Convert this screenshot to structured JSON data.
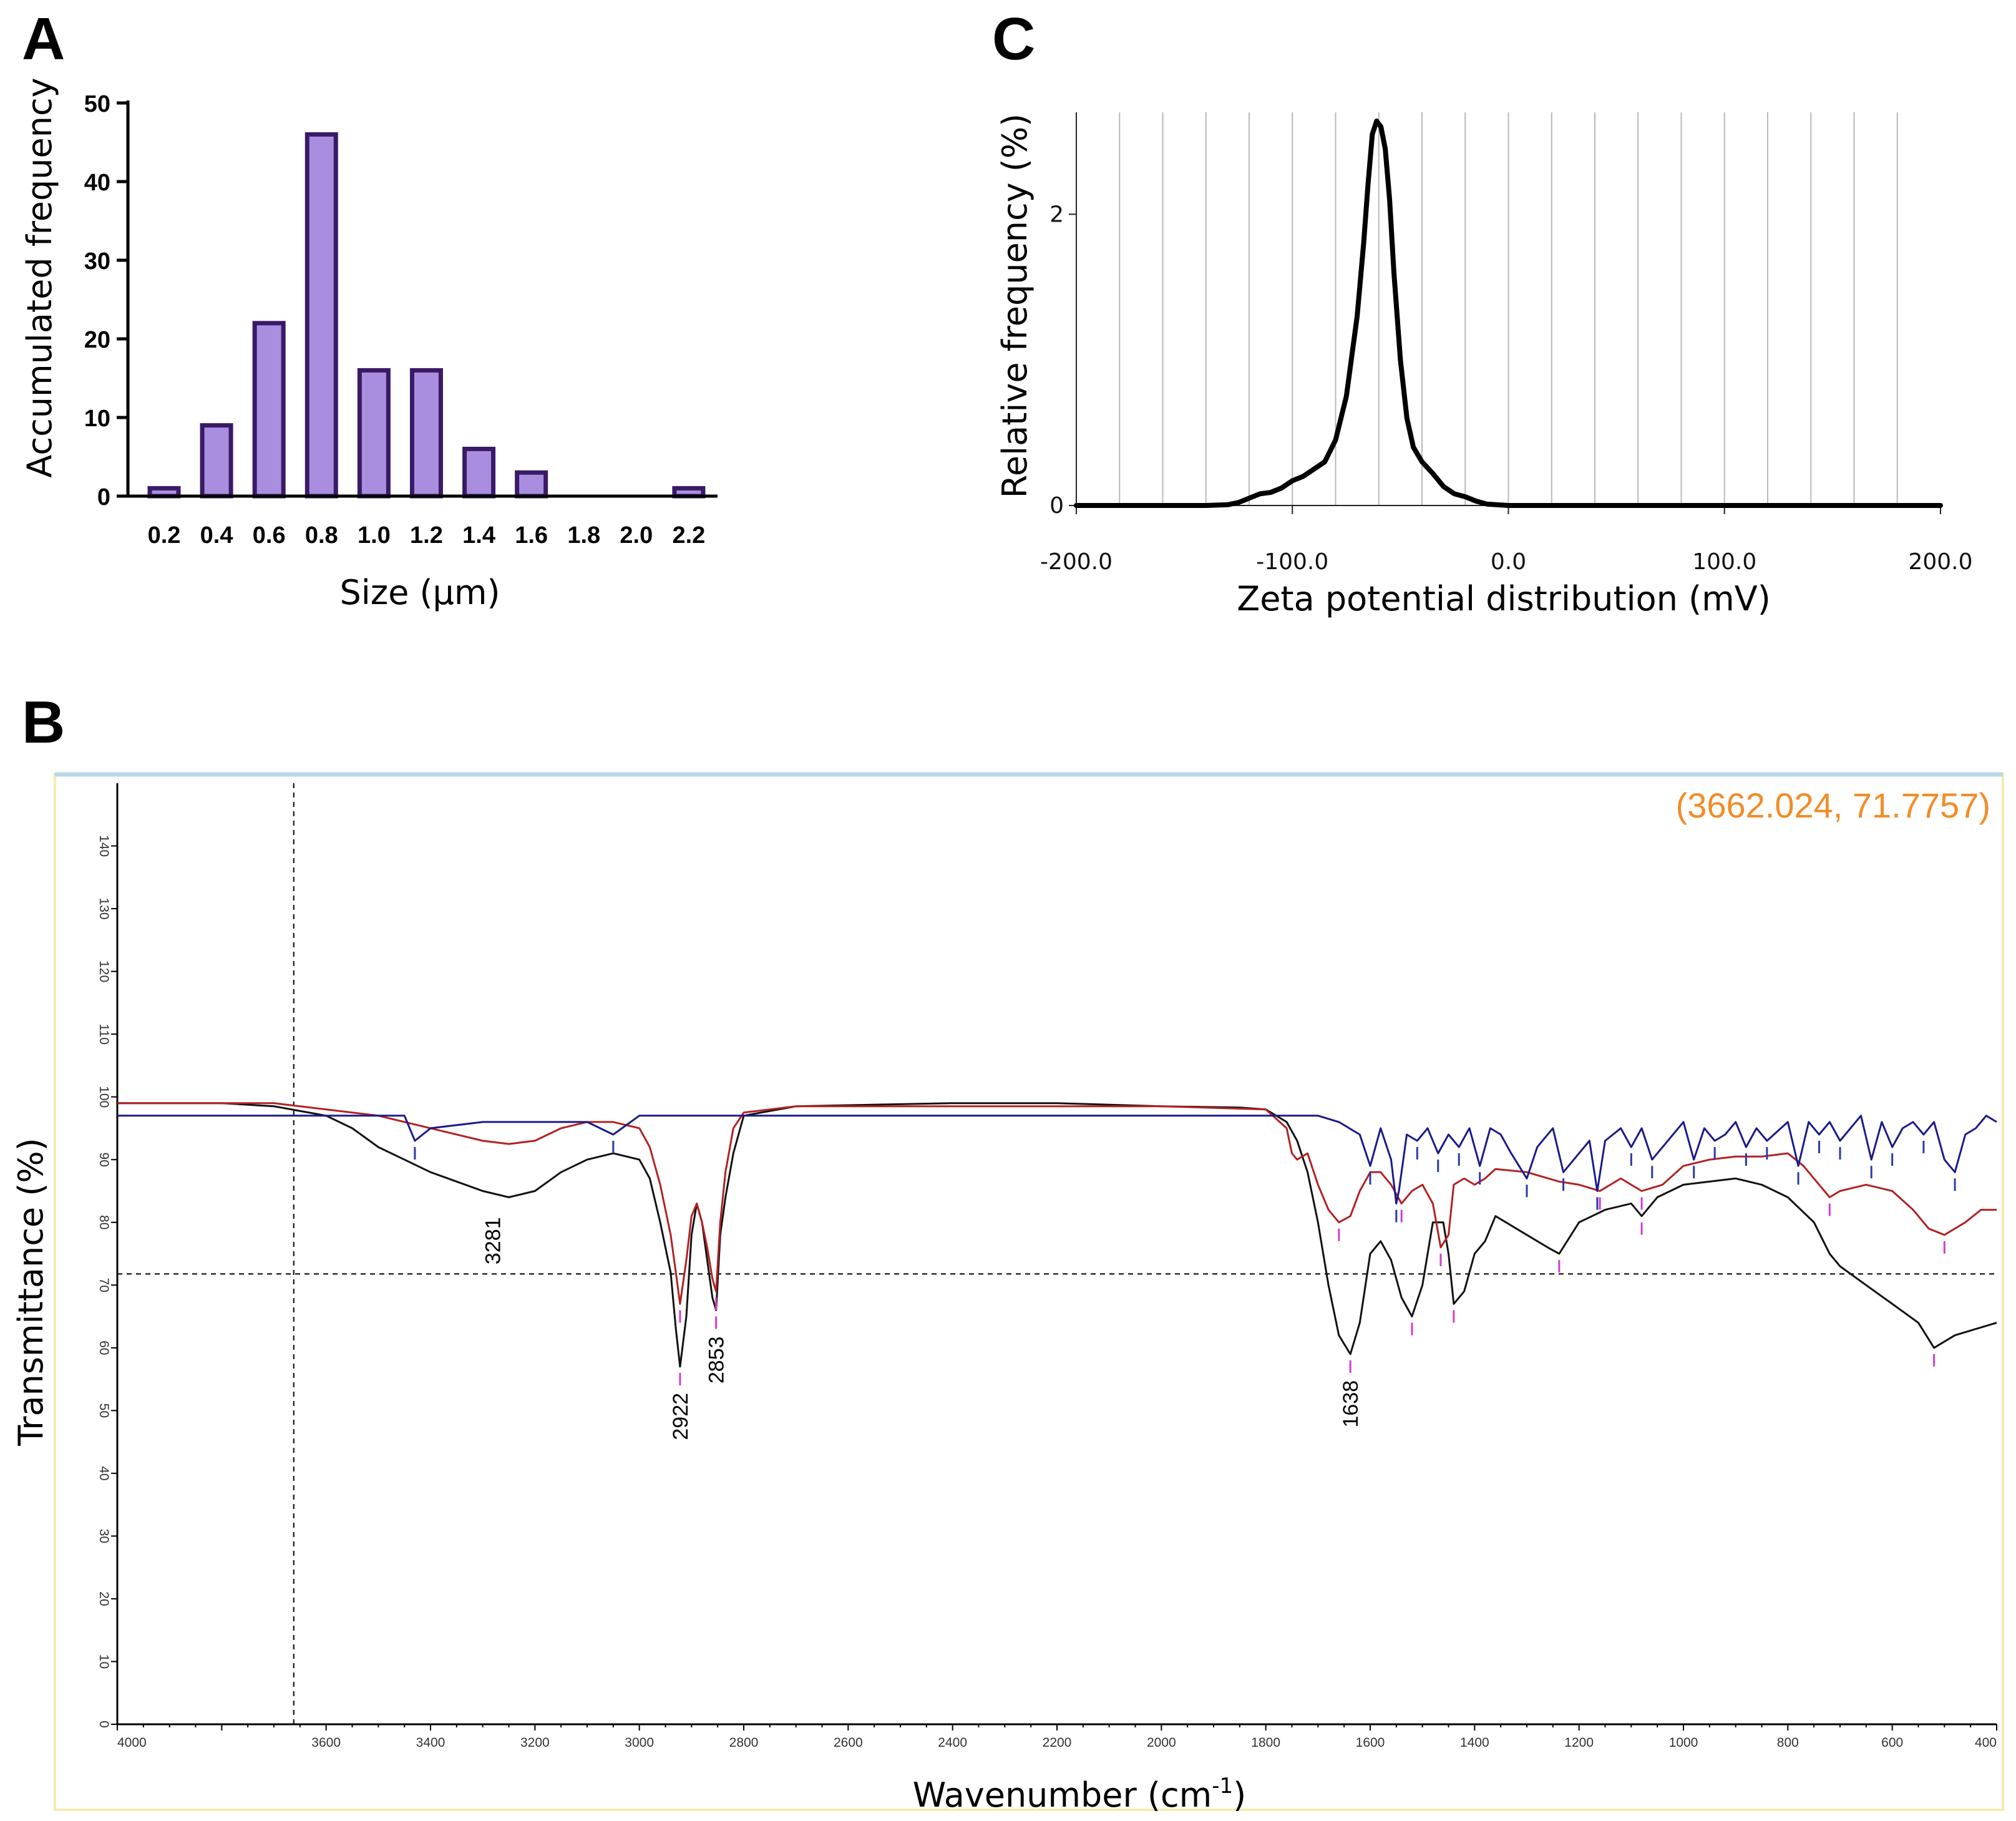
{
  "panels": {
    "a": "A",
    "b": "B",
    "c": "C"
  },
  "chart_data": [
    {
      "id": "A",
      "type": "bar",
      "title": "",
      "xlabel": "Size (µm)",
      "ylabel": "Accumulated frequency",
      "categories": [
        "0.2",
        "0.4",
        "0.6",
        "0.8",
        "1.0",
        "1.2",
        "1.4",
        "1.6",
        "1.8",
        "2.0",
        "2.2"
      ],
      "values": [
        1,
        9,
        22,
        46,
        16,
        16,
        6,
        3,
        0,
        0,
        1
      ],
      "ylim": [
        0,
        50
      ],
      "yticks": [
        0,
        10,
        20,
        30,
        40,
        50
      ],
      "bar_color": "#a98ee0",
      "edge_color": "#3a1a66"
    },
    {
      "id": "C",
      "type": "line",
      "title": "",
      "xlabel": "Zeta potential distribution (mV)",
      "ylabel": "Relative frequency (%)",
      "xlim": [
        -200,
        200
      ],
      "ylim": [
        0,
        2.7
      ],
      "xticks": [
        -200,
        -100,
        0,
        100,
        200
      ],
      "xtick_labels": [
        "-200.0",
        "-100.0",
        "0.0",
        "100.0",
        "200.0"
      ],
      "yticks": [
        0,
        2
      ],
      "grid": true,
      "x": [
        -200,
        -140,
        -130,
        -125,
        -120,
        -115,
        -110,
        -105,
        -100,
        -95,
        -90,
        -85,
        -80,
        -75,
        -70,
        -67,
        -65,
        -63,
        -61,
        -59,
        -57,
        -55,
        -53,
        -50,
        -47,
        -44,
        -40,
        -35,
        -30,
        -25,
        -20,
        -15,
        -10,
        0,
        200
      ],
      "y": [
        0,
        0,
        0.005,
        0.02,
        0.05,
        0.08,
        0.09,
        0.12,
        0.17,
        0.2,
        0.25,
        0.3,
        0.45,
        0.75,
        1.3,
        1.8,
        2.2,
        2.55,
        2.64,
        2.6,
        2.45,
        2.1,
        1.6,
        1.0,
        0.6,
        0.4,
        0.3,
        0.22,
        0.13,
        0.08,
        0.06,
        0.03,
        0.01,
        0,
        0
      ],
      "line_color": "#000000"
    },
    {
      "id": "B",
      "type": "line",
      "title": "",
      "xlabel": "Wavenumber (cm",
      "xlabel_sup": "-1",
      "xlabel_close": ")",
      "ylabel": "Transmittance (%)",
      "xlim": [
        4000,
        400
      ],
      "ylim": [
        0,
        150
      ],
      "xticks": [
        4000,
        3600,
        3400,
        3200,
        3000,
        2800,
        2600,
        2400,
        2200,
        2000,
        1800,
        1600,
        1400,
        1200,
        1000,
        800,
        600,
        400
      ],
      "yticks": [
        0,
        10,
        20,
        30,
        40,
        50,
        60,
        70,
        80,
        90,
        100,
        110,
        120,
        130,
        140
      ],
      "cursor": {
        "x": 3662.024,
        "y": 71.7757,
        "label": "(3662.024, 71.7757)"
      },
      "peak_labels": [
        {
          "x": 3281,
          "label": "3281"
        },
        {
          "x": 2922,
          "label": "2922"
        },
        {
          "x": 2853,
          "label": "2853"
        },
        {
          "x": 1638,
          "label": "1638"
        }
      ],
      "series": [
        {
          "name": "black",
          "color": "#111111",
          "x": [
            4000,
            3800,
            3700,
            3600,
            3550,
            3500,
            3400,
            3300,
            3250,
            3200,
            3150,
            3100,
            3050,
            3000,
            2980,
            2960,
            2940,
            2930,
            2922,
            2910,
            2900,
            2890,
            2880,
            2870,
            2860,
            2853,
            2845,
            2835,
            2820,
            2800,
            2700,
            2400,
            2200,
            2000,
            1850,
            1800,
            1760,
            1740,
            1720,
            1700,
            1680,
            1660,
            1638,
            1620,
            1600,
            1580,
            1560,
            1540,
            1520,
            1500,
            1480,
            1460,
            1450,
            1440,
            1420,
            1400,
            1380,
            1360,
            1340,
            1300,
            1260,
            1238,
            1200,
            1150,
            1100,
            1080,
            1050,
            1000,
            950,
            900,
            850,
            800,
            750,
            720,
            700,
            650,
            600,
            550,
            520,
            480,
            440,
            400
          ],
          "y": [
            99,
            99,
            98.5,
            97,
            95,
            92,
            88,
            85,
            84,
            85,
            88,
            90,
            91,
            90,
            87,
            80,
            72,
            63,
            57,
            65,
            78,
            83,
            80,
            74,
            68,
            66,
            78,
            84,
            91,
            97,
            98.5,
            99,
            99,
            98.5,
            98.3,
            98,
            96,
            93,
            88,
            80,
            70,
            62,
            59,
            64,
            75,
            77,
            74,
            68,
            65,
            70,
            80,
            80,
            75,
            67,
            69,
            75,
            77,
            81,
            80,
            78,
            76,
            75,
            80,
            82,
            83,
            81,
            84,
            86,
            86.5,
            87,
            86,
            84,
            80,
            75,
            73,
            70,
            67,
            64,
            60,
            62,
            63,
            64
          ]
        },
        {
          "name": "red",
          "color": "#b22222",
          "x": [
            4000,
            3800,
            3700,
            3600,
            3500,
            3400,
            3300,
            3250,
            3200,
            3150,
            3100,
            3050,
            3000,
            2980,
            2960,
            2940,
            2930,
            2922,
            2910,
            2900,
            2890,
            2880,
            2870,
            2860,
            2853,
            2845,
            2835,
            2820,
            2800,
            2700,
            2400,
            2200,
            2000,
            1800,
            1760,
            1750,
            1740,
            1720,
            1700,
            1680,
            1660,
            1638,
            1620,
            1600,
            1580,
            1560,
            1540,
            1520,
            1500,
            1480,
            1465,
            1450,
            1440,
            1420,
            1400,
            1380,
            1360,
            1300,
            1238,
            1200,
            1160,
            1120,
            1080,
            1040,
            1000,
            950,
            900,
            850,
            800,
            770,
            740,
            720,
            700,
            650,
            600,
            560,
            530,
            500,
            460,
            430,
            400
          ],
          "y": [
            99,
            99,
            99,
            98,
            97,
            95,
            93,
            92.5,
            93,
            95,
            96,
            96,
            95,
            92,
            86,
            78,
            72,
            67,
            74,
            81,
            83,
            80,
            76,
            71,
            69,
            80,
            88,
            95,
            97.5,
            98.5,
            98.5,
            98.5,
            98.5,
            98,
            95,
            91,
            90,
            91,
            86,
            82,
            80,
            81,
            85,
            88,
            88,
            86,
            83,
            85,
            86,
            83,
            76,
            78,
            86,
            87,
            86,
            87,
            88.5,
            88,
            86.5,
            86,
            85,
            87,
            85,
            86,
            89,
            90,
            90.5,
            90.5,
            91,
            89,
            86,
            84,
            85,
            86,
            85,
            82,
            79,
            78,
            80,
            82,
            82
          ]
        },
        {
          "name": "blue",
          "color": "#1a1a8c",
          "x": [
            4000,
            3800,
            3700,
            3600,
            3450,
            3430,
            3400,
            3300,
            3200,
            3100,
            3050,
            3000,
            2900,
            2800,
            2400,
            2000,
            1800,
            1700,
            1660,
            1620,
            1600,
            1580,
            1560,
            1550,
            1545,
            1530,
            1510,
            1490,
            1470,
            1450,
            1430,
            1410,
            1390,
            1370,
            1350,
            1330,
            1300,
            1280,
            1250,
            1230,
            1200,
            1180,
            1165,
            1150,
            1120,
            1100,
            1080,
            1060,
            1020,
            1000,
            980,
            960,
            940,
            920,
            900,
            880,
            860,
            840,
            800,
            780,
            760,
            740,
            720,
            700,
            660,
            640,
            620,
            600,
            580,
            560,
            540,
            520,
            500,
            480,
            460,
            440,
            420,
            400
          ],
          "y": [
            97,
            97,
            97,
            97,
            97,
            93,
            95,
            96,
            96,
            96,
            94,
            97,
            97,
            97,
            97,
            97,
            97,
            97,
            96,
            94,
            89,
            95,
            90,
            83,
            85,
            94,
            93,
            95,
            91,
            94,
            92,
            95,
            89,
            95,
            94,
            91,
            87,
            92,
            95,
            88,
            91,
            93,
            85,
            93,
            95,
            92,
            95,
            90,
            94,
            96,
            90,
            95,
            93,
            94,
            96,
            92,
            95,
            93,
            96,
            89,
            96,
            94,
            96,
            93,
            97,
            90,
            96,
            92,
            95,
            96,
            94,
            96,
            90,
            88,
            94,
            95,
            97,
            96
          ]
        }
      ]
    }
  ]
}
